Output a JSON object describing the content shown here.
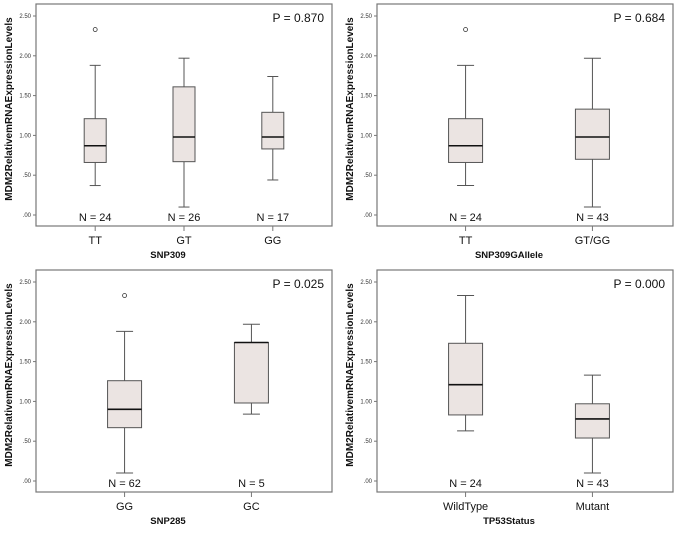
{
  "chart_data": [
    {
      "type": "box",
      "ylabel": "MDM2RelativemRNAExpressionLevels",
      "xlabel": "SNP309",
      "p_value": "P = 0.870",
      "yticks": [
        "2.50",
        "2.00",
        "1.50",
        "1.00",
        ".50",
        ".00"
      ],
      "ylim": [
        0,
        2.5
      ],
      "groups": [
        {
          "label": "TT",
          "n": "N = 24",
          "min": 0.37,
          "q1": 0.66,
          "median": 0.87,
          "q3": 1.21,
          "max": 1.88,
          "outliers": [
            2.33
          ]
        },
        {
          "label": "GT",
          "n": "N = 26",
          "min": 0.1,
          "q1": 0.67,
          "median": 0.98,
          "q3": 1.61,
          "max": 1.97,
          "outliers": []
        },
        {
          "label": "GG",
          "n": "N = 17",
          "min": 0.44,
          "q1": 0.83,
          "median": 0.98,
          "q3": 1.29,
          "max": 1.74,
          "outliers": []
        }
      ]
    },
    {
      "type": "box",
      "ylabel": "MDM2RelativemRNAExpressionLevels",
      "xlabel": "SNP309GAllele",
      "p_value": "P = 0.684",
      "yticks": [
        "2.50",
        "2.00",
        "1.50",
        "1.00",
        ".50",
        ".00"
      ],
      "ylim": [
        0,
        2.5
      ],
      "groups": [
        {
          "label": "TT",
          "n": "N = 24",
          "min": 0.37,
          "q1": 0.66,
          "median": 0.87,
          "q3": 1.21,
          "max": 1.88,
          "outliers": [
            2.33
          ]
        },
        {
          "label": "GT/GG",
          "n": "N = 43",
          "min": 0.1,
          "q1": 0.7,
          "median": 0.98,
          "q3": 1.33,
          "max": 1.97,
          "outliers": []
        }
      ]
    },
    {
      "type": "box",
      "ylabel": "MDM2RelativemRNAExpressionLevels",
      "xlabel": "SNP285",
      "p_value": "P = 0.025",
      "yticks": [
        "2.50",
        "2.00",
        "1.50",
        "1.00",
        ".50",
        ".00"
      ],
      "ylim": [
        0,
        2.5
      ],
      "groups": [
        {
          "label": "GG",
          "n": "N = 62",
          "min": 0.1,
          "q1": 0.67,
          "median": 0.9,
          "q3": 1.26,
          "max": 1.88,
          "outliers": [
            2.33
          ]
        },
        {
          "label": "GC",
          "n": "N = 5",
          "min": 0.84,
          "q1": 0.98,
          "median": 1.74,
          "q3": 1.74,
          "max": 1.97,
          "outliers": []
        }
      ]
    },
    {
      "type": "box",
      "ylabel": "MDM2RelativemRNAExpressionLevels",
      "xlabel": "TP53Status",
      "p_value": "P = 0.000",
      "yticks": [
        "2.50",
        "2.00",
        "1.50",
        "1.00",
        ".50",
        ".00"
      ],
      "ylim": [
        0,
        2.5
      ],
      "groups": [
        {
          "label": "WildType",
          "n": "N = 24",
          "min": 0.63,
          "q1": 0.83,
          "median": 1.21,
          "q3": 1.73,
          "max": 2.33,
          "outliers": []
        },
        {
          "label": "Mutant",
          "n": "N = 43",
          "min": 0.1,
          "q1": 0.54,
          "median": 0.78,
          "q3": 0.97,
          "max": 1.33,
          "outliers": []
        }
      ]
    }
  ]
}
